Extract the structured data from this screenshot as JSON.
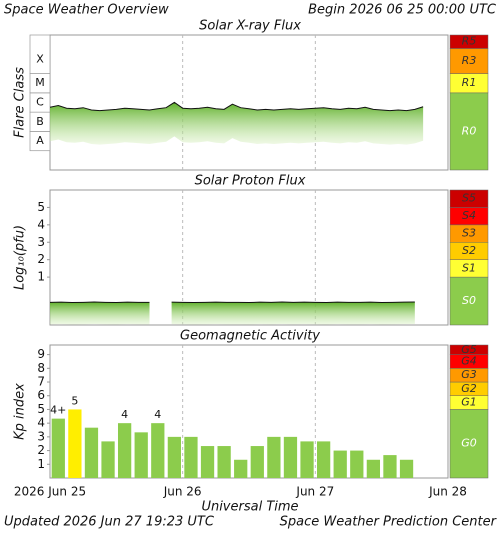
{
  "header": {
    "title": "Space Weather Overview",
    "begin": "Begin 2026 06 25 00:00 UTC"
  },
  "chart_data": [
    {
      "type": "line",
      "title": "Solar X-ray Flux",
      "ylabel": "Flare Class",
      "log_y": true,
      "color": "#111111",
      "fill": "#7cc43c",
      "xlim": [
        0,
        72
      ],
      "xticks": [
        24,
        48
      ],
      "ylim": [
        1e-09,
        0.01
      ],
      "yticks": [
        {
          "value": 1e-08,
          "label": "A"
        },
        {
          "value": 1e-07,
          "label": "B"
        },
        {
          "value": 1e-06,
          "label": "C"
        },
        {
          "value": 1e-05,
          "label": "M"
        },
        {
          "value": 0.0001,
          "label": "X"
        }
      ],
      "x": [
        0,
        1.5,
        3,
        4.5,
        6,
        7.5,
        9,
        10.5,
        12,
        13.5,
        15,
        16.5,
        18,
        19.5,
        21,
        22.5,
        24,
        25.5,
        27,
        28.5,
        30,
        31.5,
        33,
        34.5,
        36,
        37.5,
        39,
        40.5,
        42,
        43.5,
        45,
        46.5,
        48,
        49.5,
        51,
        52.5,
        54,
        55.5,
        57,
        58.5,
        60,
        61.5,
        63,
        64.5,
        66,
        67.5
      ],
      "values": [
        1.8e-06,
        2.2e-06,
        1.6e-06,
        1.5e-06,
        1.7e-06,
        1.3e-06,
        1.2e-06,
        1.3e-06,
        1.4e-06,
        1.6e-06,
        1.5e-06,
        1.4e-06,
        1.3e-06,
        1.5e-06,
        1.7e-06,
        3.2e-06,
        1.6e-06,
        1.5e-06,
        1.6e-06,
        1.8e-06,
        1.5e-06,
        1.4e-06,
        2.6e-06,
        1.7e-06,
        1.5e-06,
        1.3e-06,
        1.4e-06,
        1.3e-06,
        1.4e-06,
        1.5e-06,
        1.4e-06,
        1.5e-06,
        1.6e-06,
        1.7e-06,
        1.5e-06,
        1.4e-06,
        1.6e-06,
        1.5e-06,
        1.8e-06,
        1.4e-06,
        1.3e-06,
        1.2e-06,
        1.3e-06,
        1.2e-06,
        1.4e-06,
        1.9e-06
      ],
      "scale": [
        {
          "label": "R0",
          "from": 1e-09,
          "to": 1e-05,
          "color": "#8ccc4c"
        },
        {
          "label": "R1",
          "from": 1e-05,
          "to": 0.0001,
          "color": "#ffff33"
        },
        {
          "label": "R3",
          "from": 0.0001,
          "to": 0.002,
          "color": "#ff9900"
        },
        {
          "label": "R5",
          "from": 0.002,
          "to": 0.01,
          "color": "#cc0000"
        }
      ]
    },
    {
      "type": "line",
      "title": "Solar Proton Flux",
      "ylabel": "Log₁₀(pfu)",
      "log_y": false,
      "color": "#111111",
      "fill": "#7cc43c",
      "xlim": [
        0,
        72
      ],
      "xticks": [
        24,
        48
      ],
      "ylim": [
        -1.75,
        6
      ],
      "yticks": [
        1,
        2,
        3,
        4,
        5
      ],
      "x": [
        0,
        2,
        4,
        6,
        8,
        10,
        12,
        14,
        16,
        18,
        20,
        22,
        24,
        26,
        28,
        30,
        32,
        34,
        36,
        38,
        40,
        42,
        44,
        46,
        48,
        50,
        52,
        54,
        56,
        58,
        60,
        62,
        64,
        66
      ],
      "values": [
        -0.45,
        -0.44,
        -0.46,
        -0.45,
        -0.43,
        -0.45,
        -0.46,
        -0.44,
        -0.45,
        -0.45,
        null,
        -0.44,
        -0.45,
        -0.46,
        -0.45,
        -0.44,
        -0.45,
        -0.45,
        -0.46,
        -0.44,
        -0.45,
        -0.43,
        -0.45,
        -0.44,
        -0.45,
        -0.46,
        -0.44,
        -0.45,
        -0.45,
        -0.44,
        -0.46,
        -0.45,
        -0.44,
        -0.43
      ],
      "scale": [
        {
          "label": "S0",
          "from": -1.75,
          "to": 1,
          "color": "#8ccc4c"
        },
        {
          "label": "S1",
          "from": 1,
          "to": 2,
          "color": "#ffff33"
        },
        {
          "label": "S2",
          "from": 2,
          "to": 3,
          "color": "#ffcc00"
        },
        {
          "label": "S3",
          "from": 3,
          "to": 4,
          "color": "#ff9900"
        },
        {
          "label": "S4",
          "from": 4,
          "to": 5,
          "color": "#ff0000"
        },
        {
          "label": "S5",
          "from": 5,
          "to": 6,
          "color": "#cc0000"
        }
      ]
    },
    {
      "type": "bar",
      "title": "Geomagnetic Activity",
      "ylabel": "Kp index",
      "xlabel": "Universal Time",
      "xlim": [
        0,
        72
      ],
      "xticks": [
        {
          "value": 0,
          "label": "2026 Jun 25"
        },
        {
          "value": 24,
          "label": "Jun 26"
        },
        {
          "value": 48,
          "label": "Jun 27"
        },
        {
          "value": 72,
          "label": "Jun 28"
        }
      ],
      "ylim": [
        0,
        9.7
      ],
      "yticks": [
        1,
        2,
        3,
        4,
        5,
        6,
        7,
        8,
        9
      ],
      "x": [
        1.5,
        4.5,
        7.5,
        10.5,
        13.5,
        16.5,
        19.5,
        22.5,
        25.5,
        28.5,
        31.5,
        34.5,
        37.5,
        40.5,
        43.5,
        46.5,
        49.5,
        52.5,
        55.5,
        58.5,
        61.5,
        64.5
      ],
      "values": [
        4.33,
        5,
        3.67,
        2.67,
        4,
        3.33,
        4,
        3,
        3,
        2.33,
        2.33,
        1.33,
        2.33,
        3,
        3,
        2.67,
        2.67,
        2,
        2,
        1.33,
        1.67,
        1.33
      ],
      "value_labels": [
        "4+",
        "5",
        null,
        null,
        "4",
        null,
        "4",
        null,
        null,
        null,
        null,
        null,
        null,
        null,
        null,
        null,
        null,
        null,
        null,
        null,
        null,
        null
      ],
      "colors": [
        "#8ccc4c",
        "#ffee00",
        "#8ccc4c",
        "#8ccc4c",
        "#8ccc4c",
        "#8ccc4c",
        "#8ccc4c",
        "#8ccc4c",
        "#8ccc4c",
        "#8ccc4c",
        "#8ccc4c",
        "#8ccc4c",
        "#8ccc4c",
        "#8ccc4c",
        "#8ccc4c",
        "#8ccc4c",
        "#8ccc4c",
        "#8ccc4c",
        "#8ccc4c",
        "#8ccc4c",
        "#8ccc4c",
        "#8ccc4c"
      ],
      "scale": [
        {
          "label": "G0",
          "from": 0,
          "to": 5,
          "color": "#8ccc4c"
        },
        {
          "label": "G1",
          "from": 5,
          "to": 6,
          "color": "#ffff33"
        },
        {
          "label": "G2",
          "from": 6,
          "to": 7,
          "color": "#ffcc00"
        },
        {
          "label": "G3",
          "from": 7,
          "to": 8,
          "color": "#ff9900"
        },
        {
          "label": "G4",
          "from": 8,
          "to": 9,
          "color": "#ff0000"
        },
        {
          "label": "G5",
          "from": 9,
          "to": 9.7,
          "color": "#cc0000"
        }
      ]
    }
  ],
  "footer": {
    "updated": "Updated 2026 Jun 27 19:23 UTC",
    "center": "Space Weather Prediction Center"
  }
}
